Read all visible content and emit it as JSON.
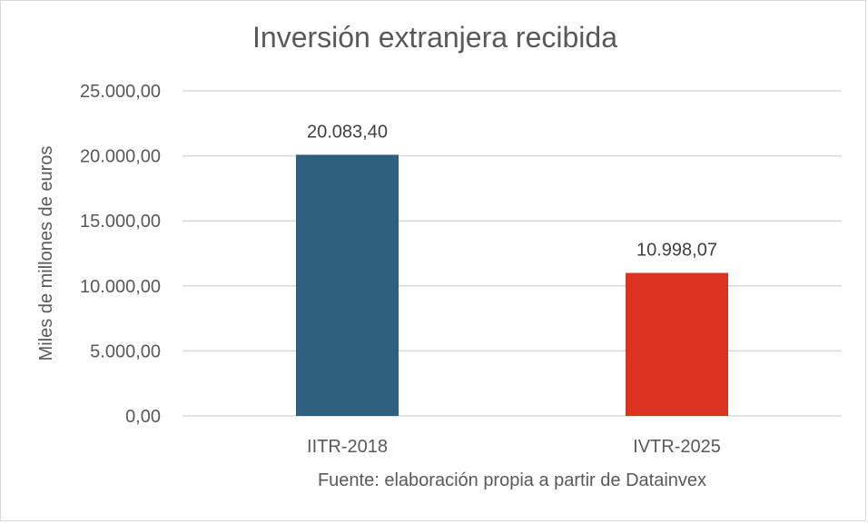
{
  "chart_data": {
    "type": "bar",
    "title": "Inversión extranjera recibida",
    "ylabel": "Miles de millones de euros",
    "xlabel": "Fuente: elaboración propia a partir de Datainvex",
    "categories": [
      "IITR-2018",
      "IVTR-2025"
    ],
    "values": [
      20083.4,
      10998.07
    ],
    "value_labels": [
      "20.083,40",
      "10.998,07"
    ],
    "bar_colors": [
      "#2e5f7f",
      "#dc3220"
    ],
    "ylim": [
      0,
      25000
    ],
    "yticks": [
      0,
      5000,
      10000,
      15000,
      20000,
      25000
    ],
    "ytick_labels": [
      "0,00",
      "5.000,00",
      "10.000,00",
      "15.000,00",
      "20.000,00",
      "25.000,00"
    ],
    "grid": true,
    "legend": false
  },
  "colors": {
    "text": "#595959",
    "value_text": "#404040",
    "grid": "#d9d9d9"
  }
}
